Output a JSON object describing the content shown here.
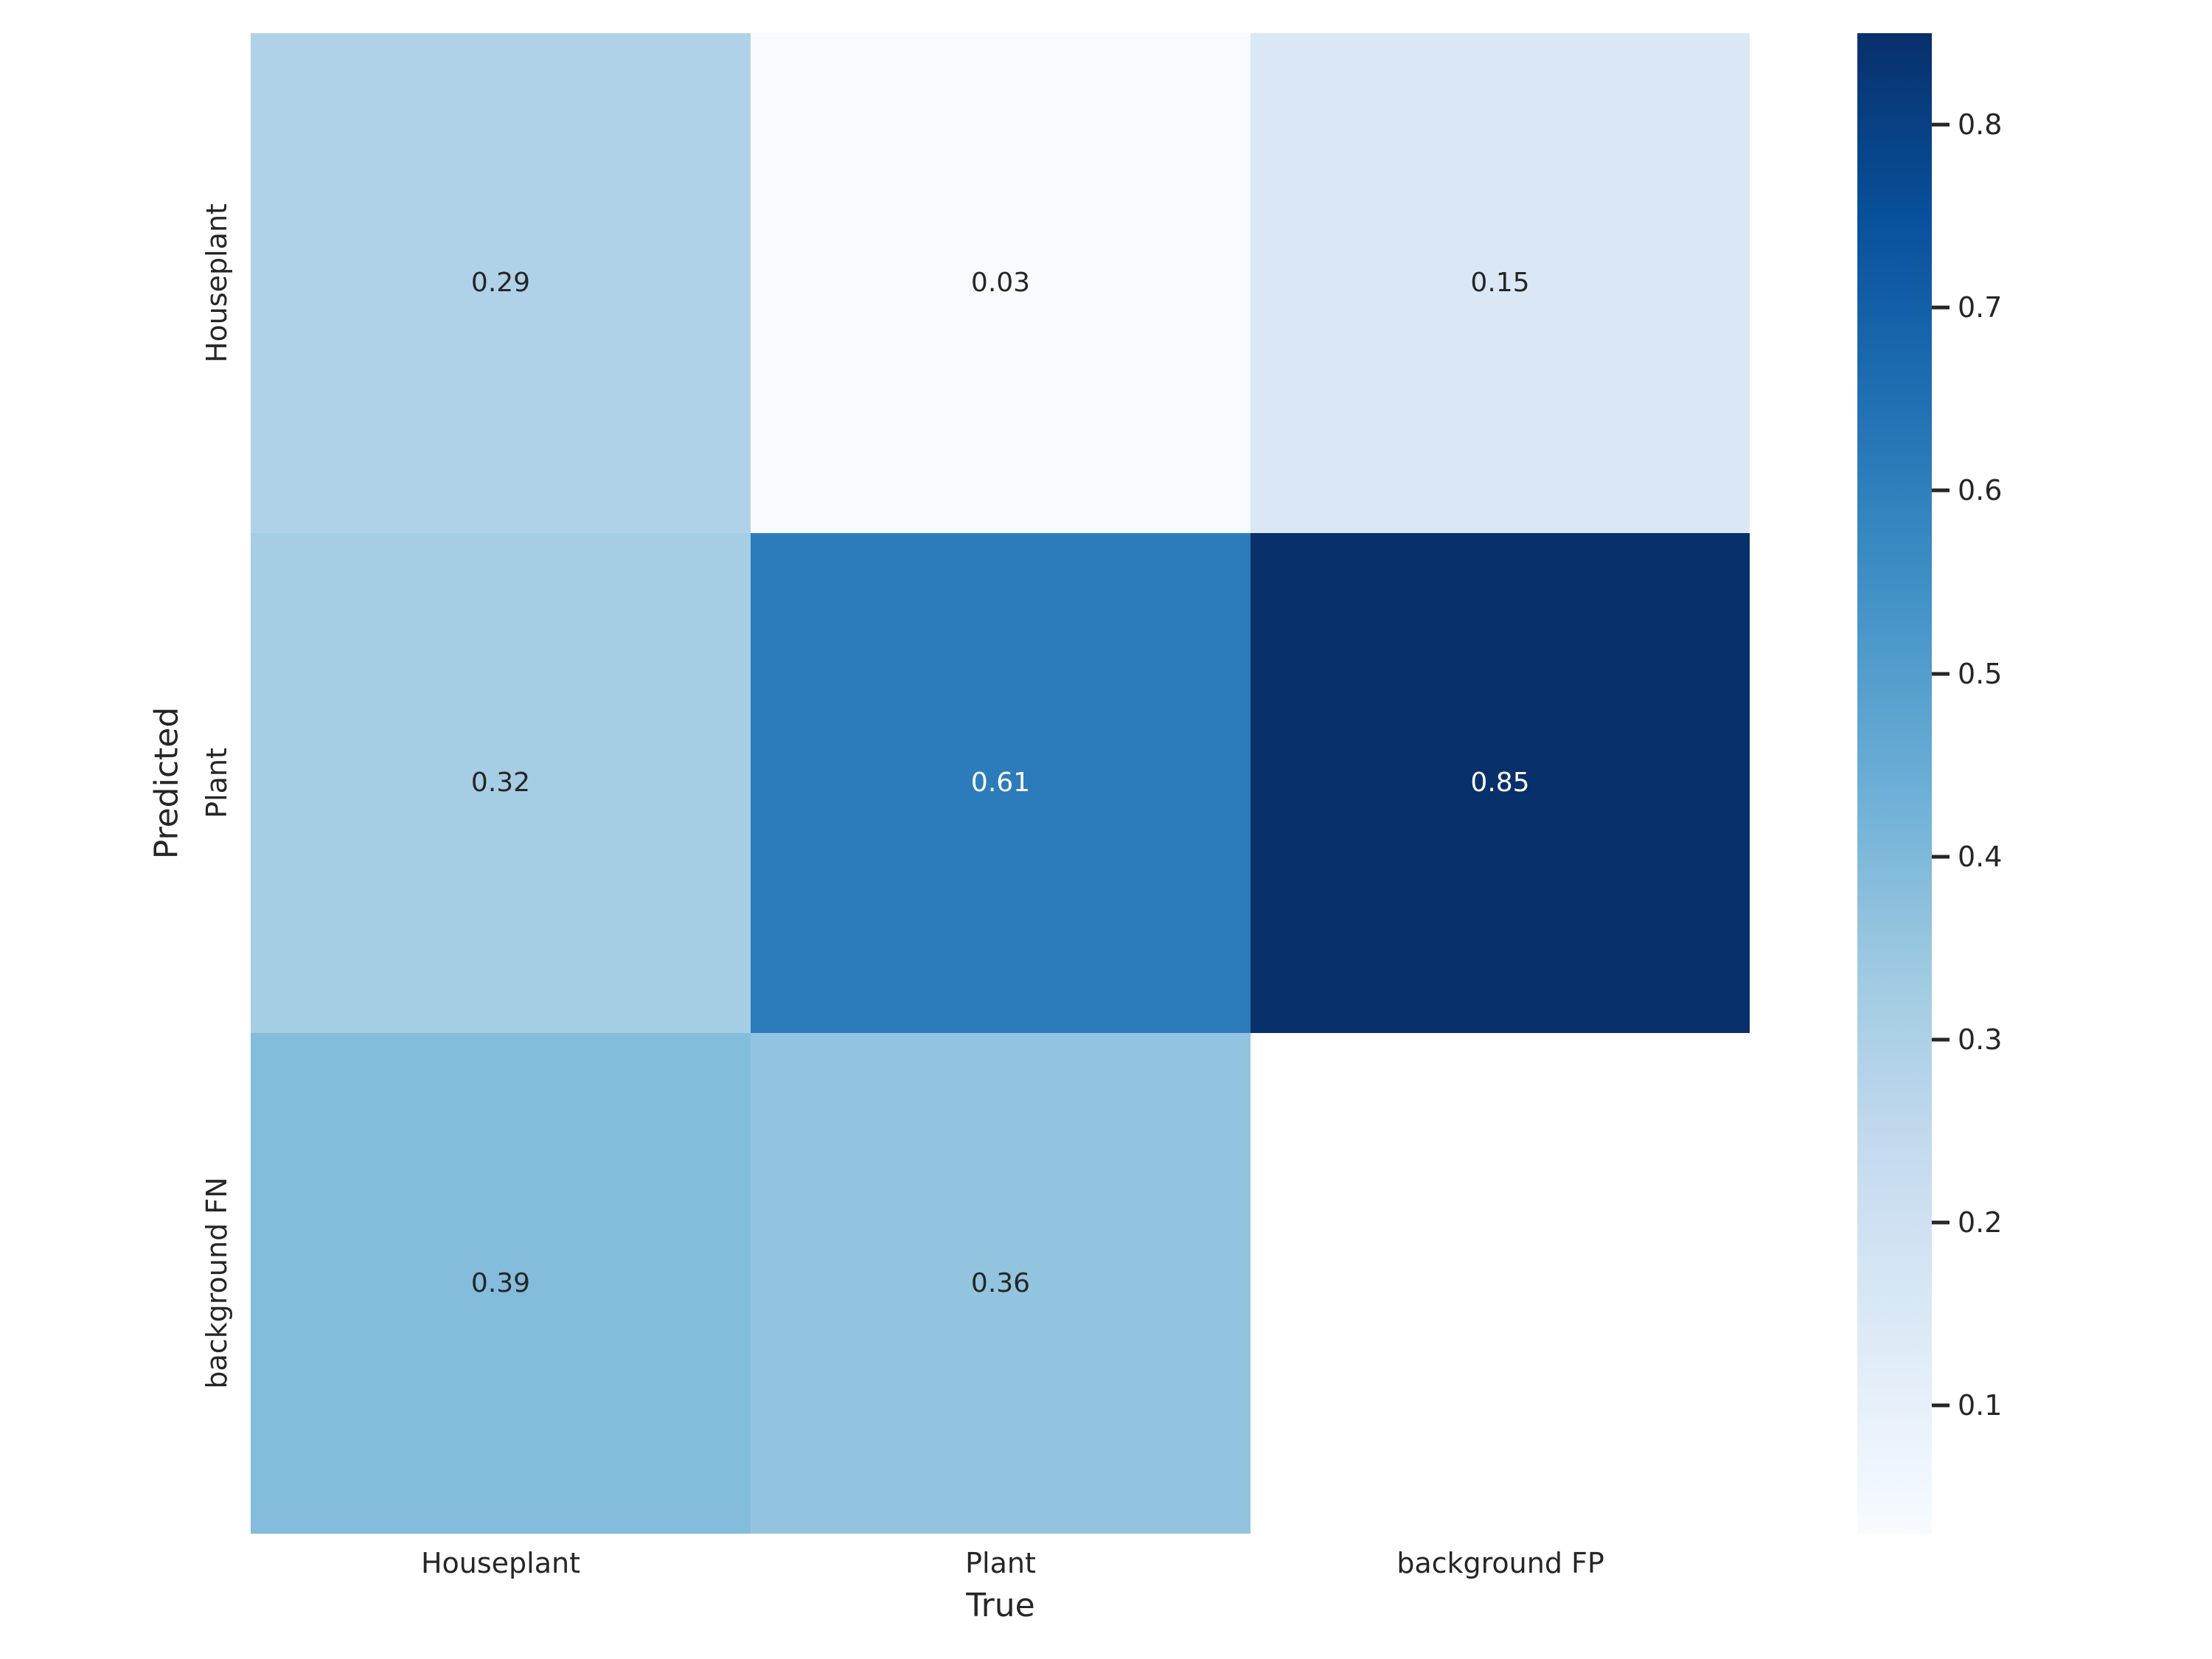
{
  "figure": {
    "background_color": "#ffffff",
    "text_color": "#262626"
  },
  "chart_data": {
    "type": "heatmap",
    "title": "",
    "xlabel": "True",
    "ylabel": "Predicted",
    "x_categories": [
      "Houseplant",
      "Plant",
      "background FP"
    ],
    "y_categories": [
      "Houseplant",
      "Plant",
      "background FN"
    ],
    "matrix": [
      [
        0.29,
        0.03,
        0.15
      ],
      [
        0.32,
        0.61,
        0.85
      ],
      [
        0.39,
        0.36,
        null
      ]
    ],
    "cell_labels": [
      [
        "0.29",
        "0.03",
        "0.15"
      ],
      [
        "0.32",
        "0.61",
        "0.85"
      ],
      [
        "0.39",
        "0.36",
        ""
      ]
    ],
    "cell_colors": [
      [
        "#b0d2e8",
        "#f7fbff",
        "#dae8f6"
      ],
      [
        "#a5cde3",
        "#2c7cbb",
        "#08306b"
      ],
      [
        "#84bcdb",
        "#93c4df",
        "#ffffff"
      ]
    ],
    "cell_text_colors": [
      [
        "#262626",
        "#262626",
        "#262626"
      ],
      [
        "#262626",
        "#ffffff",
        "#ffffff"
      ],
      [
        "#262626",
        "#262626",
        "#262626"
      ]
    ],
    "colormap": "Blues",
    "vmin": 0.03,
    "vmax": 0.85,
    "colorbar_ticks": [
      "0.8",
      "0.7",
      "0.6",
      "0.5",
      "0.4",
      "0.3",
      "0.2",
      "0.1"
    ],
    "grid": false,
    "legend_position": "right-colorbar"
  }
}
